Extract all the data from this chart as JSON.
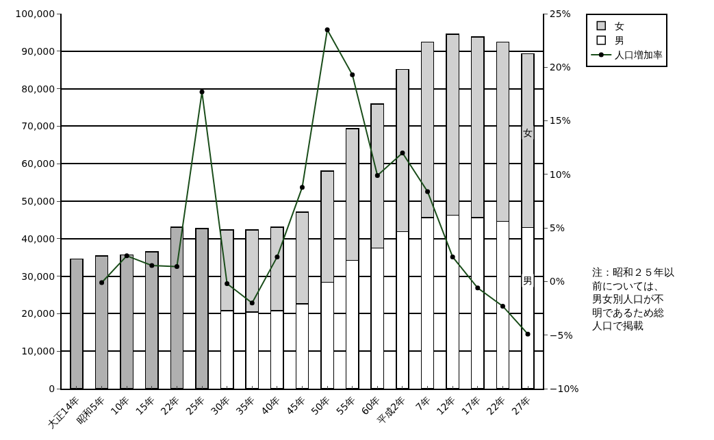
{
  "chart_data": {
    "type": "bar",
    "stacked": true,
    "categories": [
      "大正14年",
      "昭和5年",
      "10年",
      "15年",
      "22年",
      "25年",
      "30年",
      "35年",
      "40年",
      "45年",
      "50年",
      "55年",
      "60年",
      "平成2年",
      "7年",
      "12年",
      "17年",
      "22年",
      "27年"
    ],
    "series": [
      {
        "name": "男",
        "color": "#ffffff",
        "values": [
          null,
          null,
          null,
          null,
          null,
          null,
          20800,
          20400,
          20800,
          22600,
          28400,
          34200,
          37500,
          41900,
          45600,
          46300,
          45600,
          44600,
          43000
        ]
      },
      {
        "name": "女",
        "color": "#d0d0d0",
        "values": [
          null,
          null,
          null,
          null,
          null,
          null,
          21500,
          21900,
          22300,
          24500,
          29600,
          35100,
          38400,
          43200,
          46800,
          48200,
          48200,
          47800,
          46300
        ]
      },
      {
        "color": "#b0b0b0",
        "values": [
          34600,
          35400,
          35700,
          36500,
          43100,
          42700,
          null,
          null,
          null,
          null,
          null,
          null,
          null,
          null,
          null,
          null,
          null,
          null,
          null
        ]
      },
      {
        "name": "人口増加率",
        "type": "line",
        "axis": "y2",
        "color": "#1a4d1a",
        "marker": "circle",
        "values": [
          null,
          -0.1,
          2.4,
          1.5,
          1.4,
          17.7,
          -0.2,
          -2.0,
          2.3,
          8.8,
          23.5,
          19.3,
          9.9,
          12.0,
          8.4,
          2.3,
          -0.6,
          -2.3,
          -4.9
        ]
      }
    ],
    "ylim": [
      0,
      100000
    ],
    "yticks": [
      0,
      {
        "value": 10000,
        "label": "10,000"
      },
      {
        "value": 20000,
        "label": "20,000"
      },
      {
        "value": 30000,
        "label": "30,000"
      },
      {
        "value": 40000,
        "label": "40,000"
      },
      {
        "value": 50000,
        "label": "50,000"
      },
      {
        "value": 60000,
        "label": "60,000"
      },
      {
        "value": 70000,
        "label": "70,000"
      },
      {
        "value": 80000,
        "label": "80,000"
      },
      {
        "value": 90000,
        "label": "90,000"
      },
      {
        "value": 100000,
        "label": "100,000"
      }
    ],
    "y2lim": [
      -10,
      25
    ],
    "y2ticks": [
      {
        "value": -10,
        "label": "−10%"
      },
      {
        "value": -5,
        "label": "−5%"
      },
      {
        "value": 0,
        "label": "0%"
      },
      {
        "value": 5,
        "label": "5%"
      },
      {
        "value": 10,
        "label": "10%"
      },
      {
        "value": 15,
        "label": "15%"
      },
      {
        "value": 20,
        "label": "20%"
      },
      {
        "value": 25,
        "label": "25%"
      }
    ],
    "grid": "y",
    "legend": "top right",
    "annotations": [
      "女",
      "男",
      "注：昭和２５年以前については、男女別人口が不明であるため総人口で掲載"
    ]
  }
}
